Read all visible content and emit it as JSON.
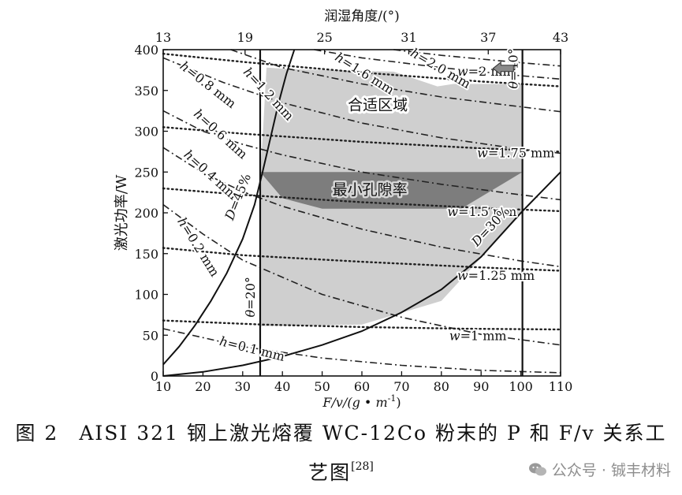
{
  "chart_data": {
    "type": "line",
    "xlabel": "F/v/(g • m",
    "xlabel_sup": "-1",
    "xlabel_close": ")",
    "ylabel": "激光功率/W",
    "top_axis_label": "润湿角度/(°)",
    "xlim": [
      10,
      110
    ],
    "ylim": [
      0,
      400
    ],
    "x_ticks": [
      10,
      20,
      30,
      40,
      50,
      60,
      70,
      80,
      90,
      100,
      110
    ],
    "y_ticks": [
      0,
      50,
      100,
      150,
      200,
      250,
      300,
      350,
      400
    ],
    "top_ticks": [
      "13",
      "19",
      "25",
      "31",
      "37",
      "43"
    ],
    "top_tick_positions_x": [
      10,
      30.6,
      50.6,
      71.8,
      91.8,
      110
    ],
    "h_series": [
      {
        "name": "h=0.1 mm",
        "points": [
          [
            10,
            58
          ],
          [
            30,
            36
          ],
          [
            50,
            22
          ],
          [
            70,
            13
          ],
          [
            90,
            7
          ],
          [
            110,
            4
          ]
        ]
      },
      {
        "name": "h=0.2 mm",
        "points": [
          [
            10,
            210
          ],
          [
            20,
            174
          ],
          [
            30,
            142
          ],
          [
            50,
            100
          ],
          [
            70,
            72
          ],
          [
            90,
            51
          ],
          [
            110,
            38
          ]
        ]
      },
      {
        "name": "h=0.4 mm",
        "points": [
          [
            10,
            280
          ],
          [
            20,
            249
          ],
          [
            30,
            226
          ],
          [
            40,
            208
          ],
          [
            60,
            180
          ],
          [
            80,
            158
          ],
          [
            100,
            141
          ],
          [
            110,
            134
          ]
        ]
      },
      {
        "name": "h=0.6 mm",
        "points": [
          [
            10,
            325
          ],
          [
            20,
            300
          ],
          [
            30,
            284
          ],
          [
            40,
            271
          ],
          [
            60,
            250
          ],
          [
            80,
            235
          ],
          [
            100,
            222
          ],
          [
            110,
            216
          ]
        ]
      },
      {
        "name": "h=0.8 mm",
        "points": [
          [
            10,
            390
          ],
          [
            25,
            360
          ],
          [
            40,
            335
          ],
          [
            60,
            310
          ],
          [
            80,
            292
          ],
          [
            100,
            278
          ],
          [
            110,
            273
          ]
        ]
      },
      {
        "name": "h=1.2 mm",
        "points": [
          [
            27,
            400
          ],
          [
            40,
            378
          ],
          [
            60,
            358
          ],
          [
            80,
            342
          ],
          [
            100,
            330
          ],
          [
            110,
            324
          ]
        ]
      },
      {
        "name": "h=1.6 mm",
        "points": [
          [
            48,
            400
          ],
          [
            60,
            390
          ],
          [
            80,
            378
          ],
          [
            100,
            368
          ],
          [
            110,
            364
          ]
        ]
      },
      {
        "name": "h=2.0 mm",
        "points": [
          [
            68,
            400
          ],
          [
            80,
            393
          ],
          [
            100,
            384
          ],
          [
            110,
            380
          ]
        ]
      }
    ],
    "w_series": [
      {
        "name": "w=1 mm",
        "points": [
          [
            10,
            68
          ],
          [
            35,
            63
          ],
          [
            60,
            60
          ],
          [
            85,
            58
          ],
          [
            110,
            57
          ]
        ]
      },
      {
        "name": "w=1.25 mm",
        "points": [
          [
            10,
            157
          ],
          [
            30,
            148
          ],
          [
            60,
            140
          ],
          [
            90,
            133
          ],
          [
            110,
            129
          ]
        ]
      },
      {
        "name": "w=1.5 mm",
        "points": [
          [
            10,
            230
          ],
          [
            30,
            222
          ],
          [
            60,
            213
          ],
          [
            90,
            206
          ],
          [
            110,
            202
          ]
        ]
      },
      {
        "name": "w=1.75 mm",
        "points": [
          [
            10,
            305
          ],
          [
            30,
            297
          ],
          [
            60,
            287
          ],
          [
            90,
            279
          ],
          [
            110,
            275
          ]
        ]
      },
      {
        "name": "w=2 mm",
        "points": [
          [
            10,
            395
          ],
          [
            30,
            385
          ],
          [
            60,
            372
          ],
          [
            90,
            361
          ],
          [
            110,
            355
          ]
        ]
      }
    ],
    "d_series": [
      {
        "name": "D=45%",
        "points": [
          [
            10,
            14
          ],
          [
            14,
            36
          ],
          [
            18,
            62
          ],
          [
            22,
            92
          ],
          [
            26,
            126
          ],
          [
            30,
            168
          ],
          [
            33,
            210
          ],
          [
            35,
            250
          ],
          [
            37,
            292
          ],
          [
            39,
            334
          ],
          [
            41,
            370
          ],
          [
            43,
            400
          ]
        ]
      },
      {
        "name": "D=30%",
        "points": [
          [
            10,
            0
          ],
          [
            20,
            5
          ],
          [
            30,
            13
          ],
          [
            40,
            24
          ],
          [
            50,
            38
          ],
          [
            60,
            55
          ],
          [
            70,
            78
          ],
          [
            80,
            106
          ],
          [
            90,
            146
          ],
          [
            100,
            200
          ],
          [
            110,
            250
          ]
        ]
      }
    ],
    "theta_series": [
      {
        "name": "θ=20°",
        "x": 34.4
      },
      {
        "name": "θ=40°",
        "x": 100.4
      }
    ],
    "regions": [
      {
        "name": "合适区域",
        "polygon": [
          [
            34.4,
            250
          ],
          [
            34.4,
            61
          ],
          [
            60,
            63
          ],
          [
            80,
            92
          ],
          [
            100.4,
            200
          ],
          [
            100.4,
            358
          ],
          [
            83,
            358
          ],
          [
            79,
            355
          ],
          [
            68,
            373
          ],
          [
            42,
            376
          ],
          [
            36,
            378
          ],
          [
            35,
            290
          ]
        ]
      },
      {
        "name": "最小孔隙率",
        "polygon": [
          [
            34.4,
            250
          ],
          [
            100.4,
            250
          ],
          [
            85,
            205
          ],
          [
            50,
            205
          ],
          [
            40,
            218
          ]
        ]
      }
    ],
    "colors": {
      "suitable_region": "#cfcfcf",
      "min_porosity_region": "#7d7d7d",
      "lines": "#111111"
    }
  },
  "labels": {
    "h_labels": [
      "h=0.1 mm",
      "h=0.2 mm",
      "h=0.4 mm",
      "h=0.6 mm",
      "h=0.8 mm",
      "h=1.2 mm",
      "h=1.6 mm",
      "h=2.0 mm"
    ],
    "w_labels": [
      "w=1 mm",
      "w=1.25 mm",
      "w=1.5 mm",
      "w=1.75 mm",
      "w=2 mm"
    ],
    "d_labels": [
      "D=45%",
      "D=30%"
    ],
    "theta_labels": [
      "θ=20°",
      "θ=40°"
    ],
    "region_labels": [
      "合适区域",
      "最小孔隙率"
    ]
  },
  "caption": {
    "figure_no": "图 2",
    "line1": "AISI 321 钢上激光熔覆 WC-12Co 粉末的 P 和 F/v 关系工",
    "line2": "艺图",
    "ref": "[28]"
  },
  "watermark": {
    "icon": "wechat-icon",
    "text": "公众号 · 铖丰材料"
  }
}
